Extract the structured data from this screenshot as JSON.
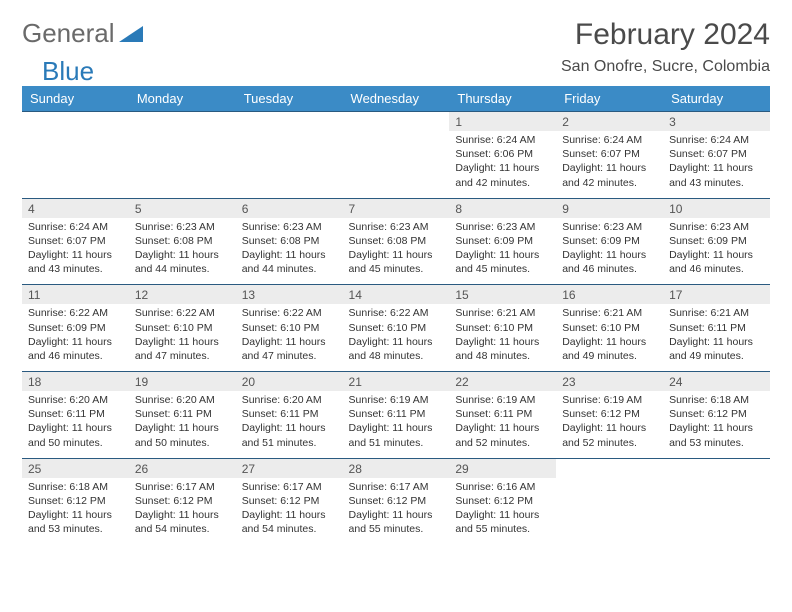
{
  "brand": {
    "part1": "General",
    "part2": "Blue"
  },
  "title": "February 2024",
  "location": "San Onofre, Sucre, Colombia",
  "colors": {
    "header_bg": "#3b8bc6",
    "daynum_bg": "#ececec",
    "border": "#2a5a80",
    "logo_gray": "#6a6a6a",
    "logo_blue": "#2a7ab8"
  },
  "weekdays": [
    "Sunday",
    "Monday",
    "Tuesday",
    "Wednesday",
    "Thursday",
    "Friday",
    "Saturday"
  ],
  "weeks": [
    [
      null,
      null,
      null,
      null,
      {
        "n": "1",
        "sr": "Sunrise: 6:24 AM",
        "ss": "Sunset: 6:06 PM",
        "dl": "Daylight: 11 hours and 42 minutes."
      },
      {
        "n": "2",
        "sr": "Sunrise: 6:24 AM",
        "ss": "Sunset: 6:07 PM",
        "dl": "Daylight: 11 hours and 42 minutes."
      },
      {
        "n": "3",
        "sr": "Sunrise: 6:24 AM",
        "ss": "Sunset: 6:07 PM",
        "dl": "Daylight: 11 hours and 43 minutes."
      }
    ],
    [
      {
        "n": "4",
        "sr": "Sunrise: 6:24 AM",
        "ss": "Sunset: 6:07 PM",
        "dl": "Daylight: 11 hours and 43 minutes."
      },
      {
        "n": "5",
        "sr": "Sunrise: 6:23 AM",
        "ss": "Sunset: 6:08 PM",
        "dl": "Daylight: 11 hours and 44 minutes."
      },
      {
        "n": "6",
        "sr": "Sunrise: 6:23 AM",
        "ss": "Sunset: 6:08 PM",
        "dl": "Daylight: 11 hours and 44 minutes."
      },
      {
        "n": "7",
        "sr": "Sunrise: 6:23 AM",
        "ss": "Sunset: 6:08 PM",
        "dl": "Daylight: 11 hours and 45 minutes."
      },
      {
        "n": "8",
        "sr": "Sunrise: 6:23 AM",
        "ss": "Sunset: 6:09 PM",
        "dl": "Daylight: 11 hours and 45 minutes."
      },
      {
        "n": "9",
        "sr": "Sunrise: 6:23 AM",
        "ss": "Sunset: 6:09 PM",
        "dl": "Daylight: 11 hours and 46 minutes."
      },
      {
        "n": "10",
        "sr": "Sunrise: 6:23 AM",
        "ss": "Sunset: 6:09 PM",
        "dl": "Daylight: 11 hours and 46 minutes."
      }
    ],
    [
      {
        "n": "11",
        "sr": "Sunrise: 6:22 AM",
        "ss": "Sunset: 6:09 PM",
        "dl": "Daylight: 11 hours and 46 minutes."
      },
      {
        "n": "12",
        "sr": "Sunrise: 6:22 AM",
        "ss": "Sunset: 6:10 PM",
        "dl": "Daylight: 11 hours and 47 minutes."
      },
      {
        "n": "13",
        "sr": "Sunrise: 6:22 AM",
        "ss": "Sunset: 6:10 PM",
        "dl": "Daylight: 11 hours and 47 minutes."
      },
      {
        "n": "14",
        "sr": "Sunrise: 6:22 AM",
        "ss": "Sunset: 6:10 PM",
        "dl": "Daylight: 11 hours and 48 minutes."
      },
      {
        "n": "15",
        "sr": "Sunrise: 6:21 AM",
        "ss": "Sunset: 6:10 PM",
        "dl": "Daylight: 11 hours and 48 minutes."
      },
      {
        "n": "16",
        "sr": "Sunrise: 6:21 AM",
        "ss": "Sunset: 6:10 PM",
        "dl": "Daylight: 11 hours and 49 minutes."
      },
      {
        "n": "17",
        "sr": "Sunrise: 6:21 AM",
        "ss": "Sunset: 6:11 PM",
        "dl": "Daylight: 11 hours and 49 minutes."
      }
    ],
    [
      {
        "n": "18",
        "sr": "Sunrise: 6:20 AM",
        "ss": "Sunset: 6:11 PM",
        "dl": "Daylight: 11 hours and 50 minutes."
      },
      {
        "n": "19",
        "sr": "Sunrise: 6:20 AM",
        "ss": "Sunset: 6:11 PM",
        "dl": "Daylight: 11 hours and 50 minutes."
      },
      {
        "n": "20",
        "sr": "Sunrise: 6:20 AM",
        "ss": "Sunset: 6:11 PM",
        "dl": "Daylight: 11 hours and 51 minutes."
      },
      {
        "n": "21",
        "sr": "Sunrise: 6:19 AM",
        "ss": "Sunset: 6:11 PM",
        "dl": "Daylight: 11 hours and 51 minutes."
      },
      {
        "n": "22",
        "sr": "Sunrise: 6:19 AM",
        "ss": "Sunset: 6:11 PM",
        "dl": "Daylight: 11 hours and 52 minutes."
      },
      {
        "n": "23",
        "sr": "Sunrise: 6:19 AM",
        "ss": "Sunset: 6:12 PM",
        "dl": "Daylight: 11 hours and 52 minutes."
      },
      {
        "n": "24",
        "sr": "Sunrise: 6:18 AM",
        "ss": "Sunset: 6:12 PM",
        "dl": "Daylight: 11 hours and 53 minutes."
      }
    ],
    [
      {
        "n": "25",
        "sr": "Sunrise: 6:18 AM",
        "ss": "Sunset: 6:12 PM",
        "dl": "Daylight: 11 hours and 53 minutes."
      },
      {
        "n": "26",
        "sr": "Sunrise: 6:17 AM",
        "ss": "Sunset: 6:12 PM",
        "dl": "Daylight: 11 hours and 54 minutes."
      },
      {
        "n": "27",
        "sr": "Sunrise: 6:17 AM",
        "ss": "Sunset: 6:12 PM",
        "dl": "Daylight: 11 hours and 54 minutes."
      },
      {
        "n": "28",
        "sr": "Sunrise: 6:17 AM",
        "ss": "Sunset: 6:12 PM",
        "dl": "Daylight: 11 hours and 55 minutes."
      },
      {
        "n": "29",
        "sr": "Sunrise: 6:16 AM",
        "ss": "Sunset: 6:12 PM",
        "dl": "Daylight: 11 hours and 55 minutes."
      },
      null,
      null
    ]
  ]
}
